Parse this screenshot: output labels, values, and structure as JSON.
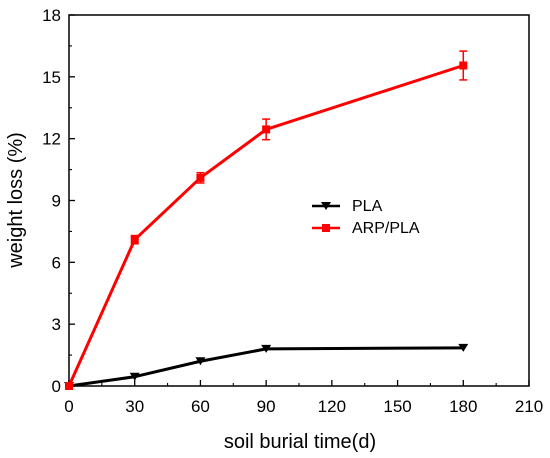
{
  "chart_data": {
    "type": "line",
    "xlabel": "soil burial time(d)",
    "ylabel": "weight loss (%)",
    "xlim": [
      0,
      210
    ],
    "ylim": [
      0,
      18
    ],
    "xticks": [
      0,
      30,
      60,
      90,
      120,
      150,
      180,
      210
    ],
    "yticks": [
      0,
      3,
      6,
      9,
      12,
      15,
      18
    ],
    "x_tick_labels": [
      "0",
      "30",
      "60",
      "90",
      "120",
      "150",
      "180",
      "210"
    ],
    "y_tick_labels": [
      "0",
      "3",
      "6",
      "9",
      "12",
      "15",
      "18"
    ],
    "grid": false,
    "legend_position": "center-right",
    "series": [
      {
        "name": "PLA",
        "color": "#000000",
        "marker": "triangle-down",
        "x": [
          0,
          30,
          60,
          90,
          180
        ],
        "y": [
          0,
          0.45,
          1.2,
          1.8,
          1.85
        ],
        "error": [
          0,
          0,
          0,
          0,
          0
        ]
      },
      {
        "name": "ARP/PLA",
        "color": "#ff0000",
        "marker": "square",
        "x": [
          0,
          30,
          60,
          90,
          180
        ],
        "y": [
          0,
          7.1,
          10.1,
          12.45,
          15.55
        ],
        "error": [
          0,
          0.2,
          0.25,
          0.5,
          0.7
        ]
      }
    ]
  }
}
